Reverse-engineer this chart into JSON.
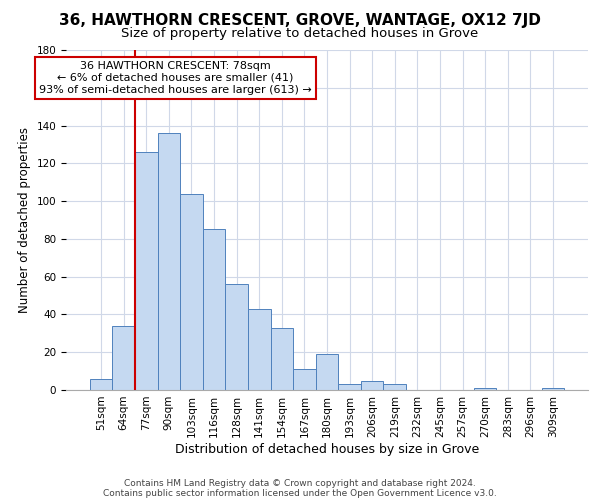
{
  "title": "36, HAWTHORN CRESCENT, GROVE, WANTAGE, OX12 7JD",
  "subtitle": "Size of property relative to detached houses in Grove",
  "xlabel": "Distribution of detached houses by size in Grove",
  "ylabel": "Number of detached properties",
  "bar_labels": [
    "51sqm",
    "64sqm",
    "77sqm",
    "90sqm",
    "103sqm",
    "116sqm",
    "128sqm",
    "141sqm",
    "154sqm",
    "167sqm",
    "180sqm",
    "193sqm",
    "206sqm",
    "219sqm",
    "232sqm",
    "245sqm",
    "257sqm",
    "270sqm",
    "283sqm",
    "296sqm",
    "309sqm"
  ],
  "bar_values": [
    6,
    34,
    126,
    136,
    104,
    85,
    56,
    43,
    33,
    11,
    19,
    3,
    5,
    3,
    0,
    0,
    0,
    1,
    0,
    0,
    1
  ],
  "bar_color": "#c5d9f1",
  "bar_edge_color": "#4f81bd",
  "vline_index": 2,
  "vline_color": "#cc0000",
  "annotation_text_line1": "36 HAWTHORN CRESCENT: 78sqm",
  "annotation_text_line2": "← 6% of detached houses are smaller (41)",
  "annotation_text_line3": "93% of semi-detached houses are larger (613) →",
  "annotation_box_color": "#ffffff",
  "annotation_box_edge": "#cc0000",
  "ylim": [
    0,
    180
  ],
  "yticks": [
    0,
    20,
    40,
    60,
    80,
    100,
    120,
    140,
    160,
    180
  ],
  "footer1": "Contains HM Land Registry data © Crown copyright and database right 2024.",
  "footer2": "Contains public sector information licensed under the Open Government Licence v3.0.",
  "title_fontsize": 11,
  "subtitle_fontsize": 9.5,
  "xlabel_fontsize": 9,
  "ylabel_fontsize": 8.5,
  "tick_fontsize": 7.5,
  "annotation_fontsize": 8,
  "footer_fontsize": 6.5,
  "bg_color": "#ffffff",
  "grid_color": "#d0d8e8"
}
